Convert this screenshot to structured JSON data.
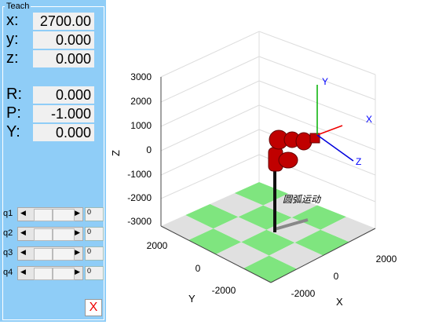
{
  "panel": {
    "title": "Teach",
    "pose": [
      {
        "label": "x:",
        "value": "2700.00"
      },
      {
        "label": "y:",
        "value": "0.000"
      },
      {
        "label": "z:",
        "value": "0.000"
      },
      {
        "label": "R:",
        "value": "0.000"
      },
      {
        "label": "P:",
        "value": "-1.000"
      },
      {
        "label": "Y:",
        "value": "0.000"
      }
    ],
    "joints": [
      {
        "label": "q1",
        "value": "0"
      },
      {
        "label": "q2",
        "value": "0"
      },
      {
        "label": "q3",
        "value": "0"
      },
      {
        "label": "q4",
        "value": "0"
      }
    ],
    "close_button": "X"
  },
  "plot": {
    "z_label": "Z",
    "y_label": "Y",
    "x_label": "X",
    "zticks": [
      "3000",
      "2000",
      "1000",
      "0",
      "-1000",
      "-2000",
      "-3000"
    ],
    "yticks": [
      "2000",
      "0",
      "-2000"
    ],
    "xticks": [
      "-2000",
      "0",
      "2000"
    ],
    "annotation": "圆弧运动",
    "frame_labels": [
      "X",
      "Y",
      "Z"
    ]
  }
}
